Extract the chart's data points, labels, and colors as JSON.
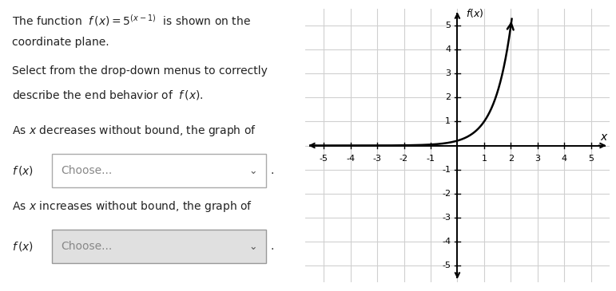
{
  "title_line1": "The function  $f\\,(x) = 5^{(x-1)}$  is shown on the",
  "title_line2": "coordinate plane.",
  "subtitle_line1": "Select from the drop-down menus to correctly",
  "subtitle_line2": "describe the end behavior of  $f\\,(x)$.",
  "label1": "As $x$ decreases without bound, the graph of",
  "label2": "As $x$ increases without bound, the graph of",
  "fx_label1": "$f\\,(x)$",
  "fx_label2": "$f\\,(x)$",
  "choose_text": "Choose...",
  "xlim": [
    -5.7,
    5.7
  ],
  "ylim": [
    -5.7,
    5.7
  ],
  "xticks": [
    -5,
    -4,
    -3,
    -2,
    -1,
    1,
    2,
    3,
    4,
    5
  ],
  "yticks": [
    -5,
    -4,
    -3,
    -2,
    -1,
    1,
    2,
    3,
    4,
    5
  ],
  "xlabel": "$x$",
  "ylabel": "$f(x)$",
  "grid_color": "#d0d0d0",
  "curve_color": "#000000",
  "bg_color": "#ffffff",
  "text_color": "#222222",
  "box1_edge_color": "#aaaaaa",
  "box1_face_color": "#ffffff",
  "box2_edge_color": "#999999",
  "box2_face_color": "#e0e0e0"
}
